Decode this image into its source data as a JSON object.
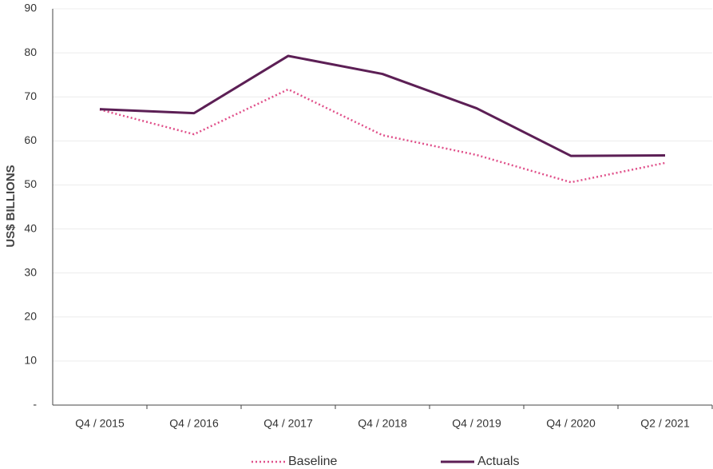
{
  "chart_data": {
    "type": "line",
    "ylabel": "US$ BILLIONS",
    "categories": [
      "Q4 / 2015",
      "Q4 / 2016",
      "Q4 / 2017",
      "Q4 / 2018",
      "Q4 / 2019",
      "Q4 / 2020",
      "Q2 / 2021"
    ],
    "series": [
      {
        "name": "Baseline",
        "color": "#e0508a",
        "dash": "dotted",
        "values": [
          67.1,
          61.5,
          71.7,
          61.3,
          56.8,
          50.6,
          55.0
        ]
      },
      {
        "name": "Actuals",
        "color": "#5c1f55",
        "dash": "solid",
        "values": [
          67.2,
          66.3,
          79.3,
          75.2,
          67.4,
          56.6,
          56.7
        ]
      }
    ],
    "ylim": [
      0,
      90
    ],
    "yticks": [
      {
        "value": 0,
        "label": "-"
      },
      10,
      20,
      30,
      40,
      50,
      60,
      70,
      80,
      90
    ],
    "grid": true,
    "legend": "bottom"
  }
}
